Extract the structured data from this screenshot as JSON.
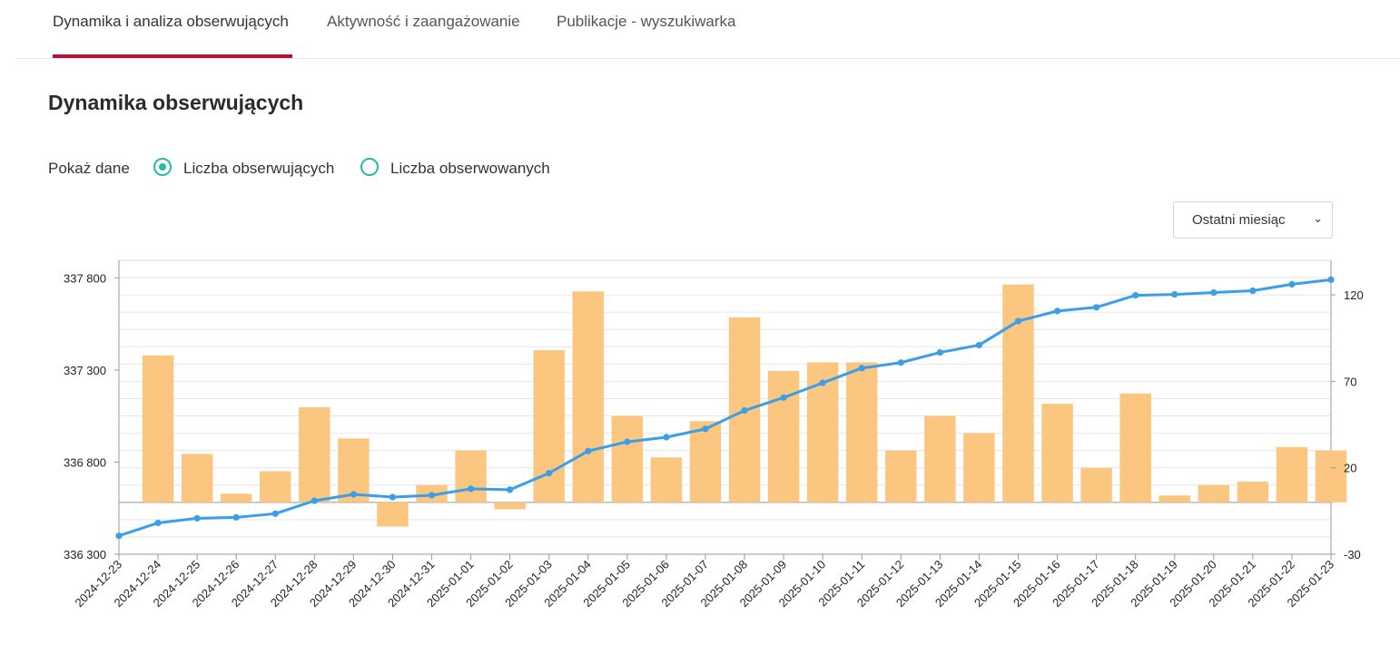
{
  "tabs": [
    {
      "label": "Dynamika i analiza obserwujących"
    },
    {
      "label": "Aktywność i zaangażowanie"
    },
    {
      "label": "Publikacje - wyszukiwarka"
    }
  ],
  "page_title": "Dynamika obserwujących",
  "show_data": {
    "label": "Pokaż dane",
    "options": [
      "Liczba obserwujących",
      "Liczba obserwowanych"
    ],
    "selected": "Liczba obserwujących"
  },
  "period_select": {
    "value": "Ostatni miesiąc"
  },
  "colors": {
    "accent": "#b3133a",
    "radio": "#2ab9a2",
    "bar": "#fbc67f",
    "line": "#3a9fe8"
  },
  "chart_data": {
    "type": "bar",
    "categories": [
      "2024-12-23",
      "2024-12-24",
      "2024-12-25",
      "2024-12-26",
      "2024-12-27",
      "2024-12-28",
      "2024-12-29",
      "2024-12-30",
      "2024-12-31",
      "2025-01-01",
      "2025-01-02",
      "2025-01-03",
      "2025-01-04",
      "2025-01-05",
      "2025-01-06",
      "2025-01-07",
      "2025-01-08",
      "2025-01-09",
      "2025-01-10",
      "2025-01-11",
      "2025-01-12",
      "2025-01-13",
      "2025-01-14",
      "2025-01-15",
      "2025-01-16",
      "2025-01-17",
      "2025-01-18",
      "2025-01-19",
      "2025-01-20",
      "2025-01-21",
      "2025-01-22",
      "2025-01-23"
    ],
    "series": [
      {
        "type": "bar",
        "axis": "right",
        "values": [
          null,
          85,
          28,
          5,
          18,
          55,
          37,
          -14,
          10,
          30,
          -4,
          88,
          122,
          50,
          26,
          47,
          107,
          76,
          81,
          81,
          30,
          50,
          40,
          126,
          57,
          20,
          63,
          4,
          10,
          12,
          32,
          30
        ]
      },
      {
        "type": "line",
        "axis": "left",
        "values": [
          336400,
          336470,
          336495,
          336500,
          336520,
          336590,
          336625,
          336610,
          336620,
          336655,
          336650,
          336740,
          336860,
          336910,
          336935,
          336980,
          337080,
          337150,
          337230,
          337310,
          337340,
          337395,
          337435,
          337565,
          337620,
          337640,
          337705,
          337710,
          337720,
          337730,
          337765,
          337790
        ]
      }
    ],
    "y_left": {
      "ticks": [
        336300,
        336800,
        337300,
        337800
      ],
      "tick_labels": [
        "336 300",
        "336 800",
        "337 300",
        "337 800"
      ],
      "range": [
        336300,
        337895
      ]
    },
    "y_right": {
      "ticks": [
        -30,
        20,
        70,
        120
      ],
      "tick_labels": [
        "-30",
        "20",
        "70",
        "120"
      ],
      "range": [
        -30,
        140
      ]
    },
    "grid": true
  }
}
